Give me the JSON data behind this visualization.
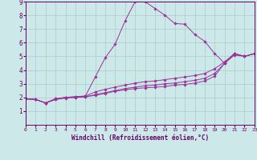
{
  "title": "",
  "xlabel": "Windchill (Refroidissement éolien,°C)",
  "ylabel": "",
  "xlim": [
    0,
    23
  ],
  "ylim": [
    0,
    9
  ],
  "xticks": [
    0,
    1,
    2,
    3,
    4,
    5,
    6,
    7,
    8,
    9,
    10,
    11,
    12,
    13,
    14,
    15,
    16,
    17,
    18,
    19,
    20,
    21,
    22,
    23
  ],
  "yticks": [
    1,
    2,
    3,
    4,
    5,
    6,
    7,
    8,
    9
  ],
  "bg_color": "#cce8e8",
  "line_color": "#993399",
  "grid_color": "#aacccc",
  "lines": [
    [
      0,
      1.9,
      1,
      1.85,
      2,
      1.6,
      3,
      1.9,
      4,
      2.0,
      5,
      2.05,
      6,
      2.1,
      7,
      3.5,
      8,
      4.9,
      9,
      5.9,
      10,
      7.6,
      11,
      9.0,
      12,
      9.0,
      13,
      8.5,
      14,
      8.0,
      15,
      7.4,
      16,
      7.35,
      17,
      6.6,
      18,
      6.1,
      19,
      5.2,
      20,
      4.5,
      21,
      5.1,
      22,
      5.0,
      23,
      5.2
    ],
    [
      0,
      1.9,
      1,
      1.85,
      2,
      1.6,
      3,
      1.9,
      4,
      2.0,
      5,
      2.05,
      6,
      2.1,
      7,
      2.4,
      8,
      2.6,
      9,
      2.75,
      10,
      2.9,
      11,
      3.05,
      12,
      3.15,
      13,
      3.2,
      14,
      3.3,
      15,
      3.4,
      16,
      3.5,
      17,
      3.6,
      18,
      3.75,
      19,
      4.1,
      20,
      4.6,
      21,
      5.2,
      22,
      5.0,
      23,
      5.2
    ],
    [
      0,
      1.9,
      1,
      1.85,
      2,
      1.6,
      3,
      1.85,
      4,
      2.0,
      5,
      2.0,
      6,
      2.05,
      7,
      2.2,
      8,
      2.35,
      9,
      2.5,
      10,
      2.65,
      11,
      2.75,
      12,
      2.85,
      13,
      2.9,
      14,
      3.0,
      15,
      3.05,
      16,
      3.15,
      17,
      3.25,
      18,
      3.4,
      19,
      3.75,
      20,
      4.5,
      21,
      5.2,
      22,
      5.0,
      23,
      5.2
    ],
    [
      0,
      1.9,
      1,
      1.85,
      2,
      1.6,
      3,
      1.85,
      4,
      1.95,
      5,
      2.0,
      6,
      2.05,
      7,
      2.15,
      8,
      2.3,
      9,
      2.45,
      10,
      2.55,
      11,
      2.65,
      12,
      2.7,
      13,
      2.75,
      14,
      2.8,
      15,
      2.9,
      16,
      2.95,
      17,
      3.05,
      18,
      3.2,
      19,
      3.55,
      20,
      4.5,
      21,
      5.2,
      22,
      5.0,
      23,
      5.2
    ]
  ]
}
